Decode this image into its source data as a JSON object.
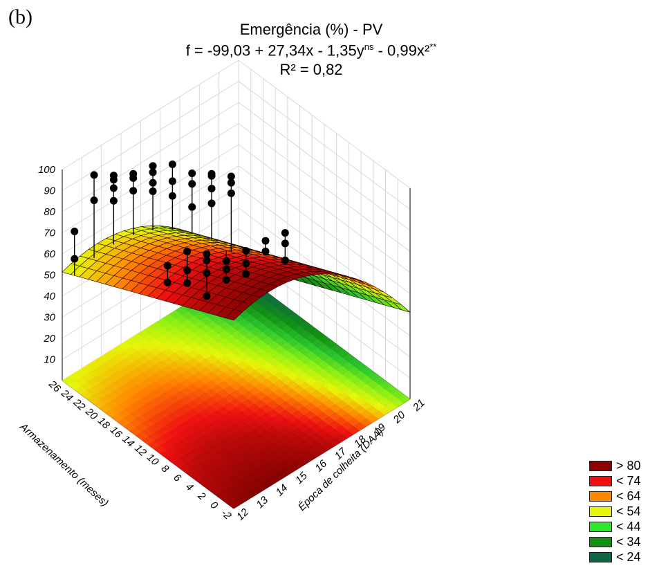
{
  "panel_label": "(b)",
  "title": "Emergência (%) - PV",
  "equation": {
    "pre": "f = -99,03 + 27,34x - 1,35y",
    "sup1": "ns",
    "post": " - 0,99x²",
    "sup2": "**"
  },
  "r2": "R² = 0,82",
  "chart_data": {
    "type": "surface3d",
    "title": "Emergência (%) - PV",
    "xlabel": "Época de colheita (DAA)",
    "ylabel": "Armazenamento (meses)",
    "zlabel": "",
    "x_ticks": [
      "12",
      "13",
      "14",
      "15",
      "16",
      "17",
      "18",
      "19",
      "20",
      "21"
    ],
    "y_ticks": [
      "-2",
      "0",
      "2",
      "4",
      "6",
      "8",
      "10",
      "12",
      "14",
      "16",
      "18",
      "20",
      "22",
      "24",
      "26"
    ],
    "z_ticks": [
      "10",
      "20",
      "30",
      "40",
      "50",
      "60",
      "70",
      "80",
      "90",
      "100"
    ],
    "xlim": [
      12,
      21
    ],
    "ylim": [
      -2,
      26
    ],
    "zlim": [
      0,
      100
    ],
    "model": {
      "intercept": -99.03,
      "x": 27.34,
      "y": -1.35,
      "x2": -0.99
    },
    "observed_points": [
      {
        "x": 12,
        "y": 24,
        "z": [
          62,
          75
        ]
      },
      {
        "x": 13,
        "y": 24,
        "z": [
          84,
          96
        ]
      },
      {
        "x": 13,
        "y": 12,
        "z": [
          71,
          79
        ]
      },
      {
        "x": 14,
        "y": 24,
        "z": [
          78,
          84,
          88,
          90
        ]
      },
      {
        "x": 14,
        "y": 12,
        "z": [
          65,
          71,
          80
        ]
      },
      {
        "x": 15,
        "y": 24,
        "z": [
          77,
          83,
          85
        ]
      },
      {
        "x": 15,
        "y": 12,
        "z": [
          53,
          64,
          70,
          73
        ]
      },
      {
        "x": 16,
        "y": 24,
        "z": [
          71,
          75,
          80,
          83
        ]
      },
      {
        "x": 16,
        "y": 12,
        "z": [
          55,
          60,
          64
        ]
      },
      {
        "x": 17,
        "y": 24,
        "z": [
          63,
          70,
          78
        ]
      },
      {
        "x": 17,
        "y": 12,
        "z": [
          52,
          57,
          63
        ]
      },
      {
        "x": 18,
        "y": 24,
        "z": [
          52,
          63,
          68
        ]
      },
      {
        "x": 18,
        "y": 12,
        "z": [
          57,
          62
        ]
      },
      {
        "x": 19,
        "y": 24,
        "z": [
          48,
          55,
          61,
          62
        ]
      },
      {
        "x": 19,
        "y": 12,
        "z": [
          47,
          55,
          60
        ]
      },
      {
        "x": 20,
        "y": 24,
        "z": [
          47,
          52,
          55
        ]
      }
    ],
    "legend": {
      "placement": "bottom-right",
      "entries": [
        {
          "label": "> 80",
          "color": "#8b0000"
        },
        {
          "label": "< 74",
          "color": "#ee1111"
        },
        {
          "label": "< 64",
          "color": "#ff8800"
        },
        {
          "label": "< 54",
          "color": "#e6f50a"
        },
        {
          "label": "< 44",
          "color": "#2ee62e"
        },
        {
          "label": "< 34",
          "color": "#139013"
        },
        {
          "label": "< 24",
          "color": "#0c6644"
        }
      ]
    },
    "grid": true
  }
}
